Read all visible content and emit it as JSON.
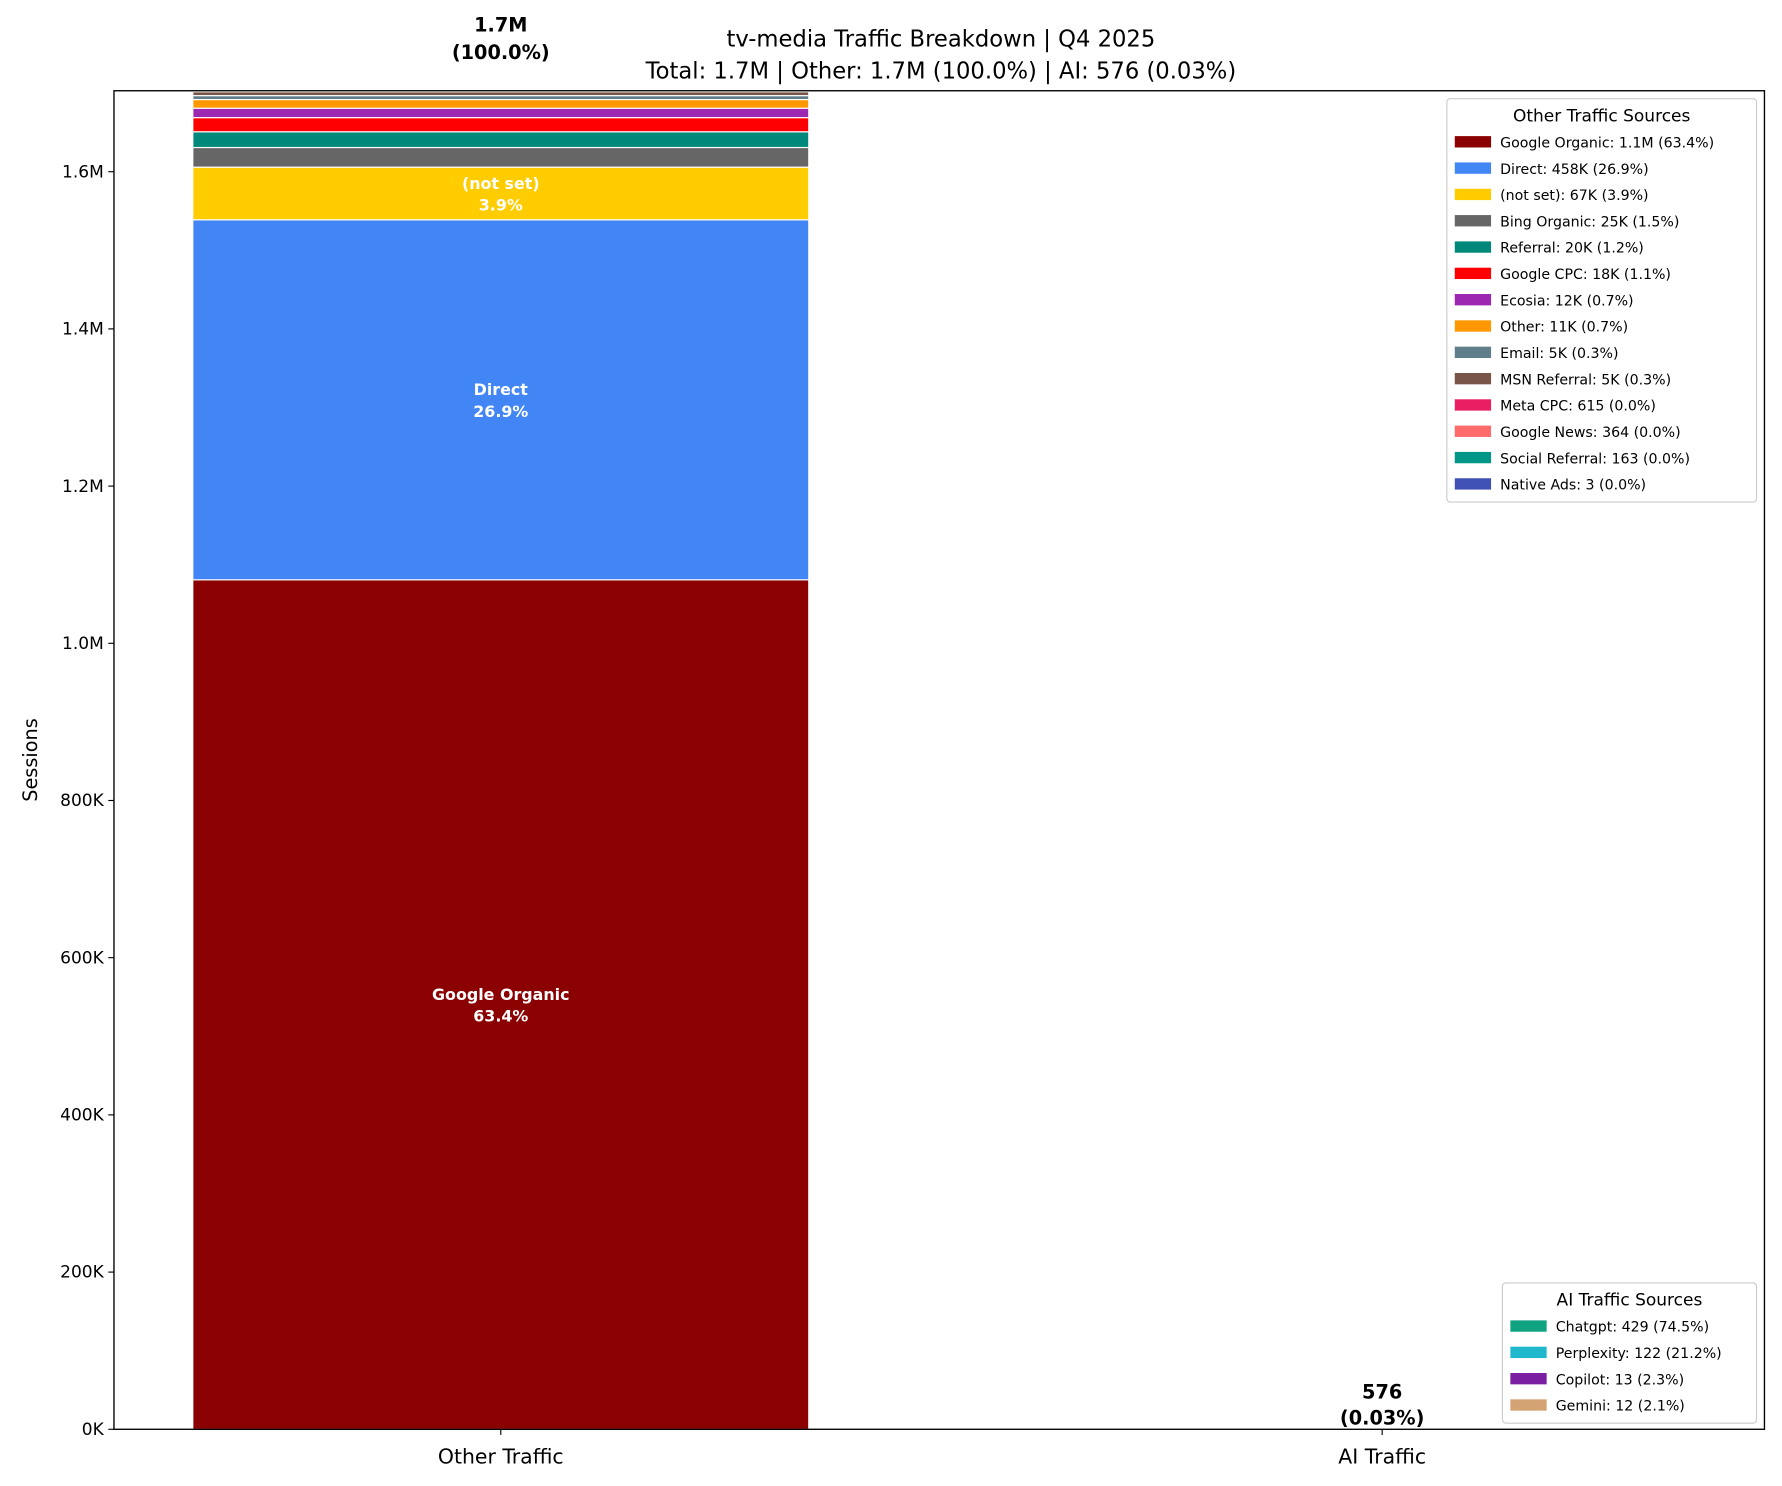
{
  "chart_data": {
    "type": "bar",
    "stacked": true,
    "title": "tv-media Traffic Breakdown | Q4 2025",
    "subtitle": "Total: 1.7M | Other: 1.7M (100.0%) | AI: 576 (0.03%)",
    "xlabel": "",
    "ylabel": "Sessions",
    "categories": [
      "Other Traffic",
      "AI Traffic"
    ],
    "ylim": [
      0,
      1703000
    ],
    "yticks": [
      0,
      200000,
      400000,
      600000,
      800000,
      1000000,
      1200000,
      1400000,
      1600000
    ],
    "ytick_labels": [
      "0K",
      "200K",
      "400K",
      "600K",
      "800K",
      "1.0M",
      "1.2M",
      "1.4M",
      "1.6M"
    ],
    "grid": false,
    "bar_totals": [
      {
        "value": "1.7M",
        "pct": "(100.0%)"
      },
      {
        "value": "576",
        "pct": "(0.03%)"
      }
    ],
    "other_series": [
      {
        "name": "Google Organic",
        "value": 1080800,
        "color": "#8b0000",
        "legend": "Google Organic: 1.1M (63.4%)",
        "label": "Google Organic",
        "label_pct": "63.4%"
      },
      {
        "name": "Direct",
        "value": 458000,
        "color": "#4285f4",
        "legend": "Direct: 458K (26.9%)",
        "label": "Direct",
        "label_pct": "26.9%"
      },
      {
        "name": "(not set)",
        "value": 67000,
        "color": "#ffcc00",
        "legend": "(not set): 67K (3.9%)",
        "label": "(not set)",
        "label_pct": "3.9%"
      },
      {
        "name": "Bing Organic",
        "value": 25000,
        "color": "#666666",
        "legend": "Bing Organic: 25K (1.5%)"
      },
      {
        "name": "Referral",
        "value": 20000,
        "color": "#00897b",
        "legend": "Referral: 20K (1.2%)"
      },
      {
        "name": "Google CPC",
        "value": 18000,
        "color": "#ff0000",
        "legend": "Google CPC: 18K (1.1%)"
      },
      {
        "name": "Ecosia",
        "value": 12000,
        "color": "#9c27b0",
        "legend": "Ecosia: 12K (0.7%)"
      },
      {
        "name": "Other",
        "value": 11000,
        "color": "#ff9800",
        "legend": "Other: 11K (0.7%)"
      },
      {
        "name": "Email",
        "value": 5000,
        "color": "#607d8b",
        "legend": "Email: 5K (0.3%)"
      },
      {
        "name": "MSN Referral",
        "value": 5000,
        "color": "#795548",
        "legend": "MSN Referral: 5K (0.3%)"
      },
      {
        "name": "Meta CPC",
        "value": 615,
        "color": "#e91e63",
        "legend": "Meta CPC: 615 (0.0%)"
      },
      {
        "name": "Google News",
        "value": 364,
        "color": "#ff6b6b",
        "legend": "Google News: 364 (0.0%)"
      },
      {
        "name": "Social Referral",
        "value": 163,
        "color": "#009688",
        "legend": "Social Referral: 163 (0.0%)"
      },
      {
        "name": "Native Ads",
        "value": 3,
        "color": "#3f51b5",
        "legend": "Native Ads: 3 (0.0%)"
      }
    ],
    "ai_series": [
      {
        "name": "Chatgpt",
        "value": 429,
        "color": "#10a37f",
        "legend": "Chatgpt: 429 (74.5%)"
      },
      {
        "name": "Perplexity",
        "value": 122,
        "color": "#20b8cd",
        "legend": "Perplexity: 122 (21.2%)"
      },
      {
        "name": "Copilot",
        "value": 13,
        "color": "#7b1fa2",
        "legend": "Copilot: 13 (2.3%)"
      },
      {
        "name": "Gemini",
        "value": 12,
        "color": "#d4a373",
        "legend": "Gemini: 12 (2.1%)"
      }
    ],
    "legends": [
      {
        "title": "Other Traffic Sources",
        "placement": "upper-right"
      },
      {
        "title": "AI Traffic Sources",
        "placement": "lower-right"
      }
    ]
  }
}
